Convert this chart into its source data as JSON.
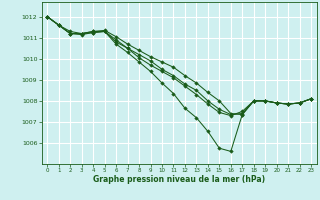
{
  "title": "Graphe pression niveau de la mer (hPa)",
  "bg_color": "#cff0f0",
  "grid_color": "#ffffff",
  "line_color": "#1a5c1a",
  "marker_color": "#1a5c1a",
  "xlim": [
    -0.5,
    23.5
  ],
  "ylim": [
    1005.0,
    1012.7
  ],
  "xticks": [
    0,
    1,
    2,
    3,
    4,
    5,
    6,
    7,
    8,
    9,
    10,
    11,
    12,
    13,
    14,
    15,
    16,
    17,
    18,
    19,
    20,
    21,
    22,
    23
  ],
  "yticks": [
    1006,
    1007,
    1008,
    1009,
    1010,
    1011,
    1012
  ],
  "series": [
    [
      1012.0,
      1011.6,
      1011.3,
      1011.2,
      1011.25,
      1011.3,
      1010.8,
      1010.5,
      1010.2,
      1009.9,
      1009.5,
      1009.2,
      1008.8,
      1008.5,
      1008.0,
      1007.6,
      1007.35,
      1007.4,
      1008.0,
      1008.0,
      1007.9,
      1007.85,
      1007.9,
      1008.1
    ],
    [
      1012.0,
      1011.6,
      1011.2,
      1011.15,
      1011.25,
      1011.3,
      1010.7,
      1010.3,
      1009.85,
      1009.4,
      1008.85,
      1008.35,
      1007.65,
      1007.2,
      1006.55,
      1005.75,
      1005.6,
      1007.35,
      1008.0,
      1008.0,
      1007.9,
      1007.85,
      1007.9,
      1008.1
    ],
    [
      1012.0,
      1011.6,
      1011.2,
      1011.2,
      1011.3,
      1011.3,
      1010.9,
      1010.5,
      1010.05,
      1009.7,
      1009.4,
      1009.1,
      1008.7,
      1008.3,
      1007.85,
      1007.45,
      1007.3,
      1007.5,
      1008.0,
      1008.0,
      1007.9,
      1007.85,
      1007.9,
      1008.1
    ],
    [
      1012.0,
      1011.6,
      1011.2,
      1011.2,
      1011.3,
      1011.35,
      1011.05,
      1010.7,
      1010.4,
      1010.1,
      1009.85,
      1009.6,
      1009.2,
      1008.85,
      1008.4,
      1008.0,
      1007.4,
      1007.35,
      1008.0,
      1008.0,
      1007.9,
      1007.85,
      1007.9,
      1008.1
    ]
  ]
}
